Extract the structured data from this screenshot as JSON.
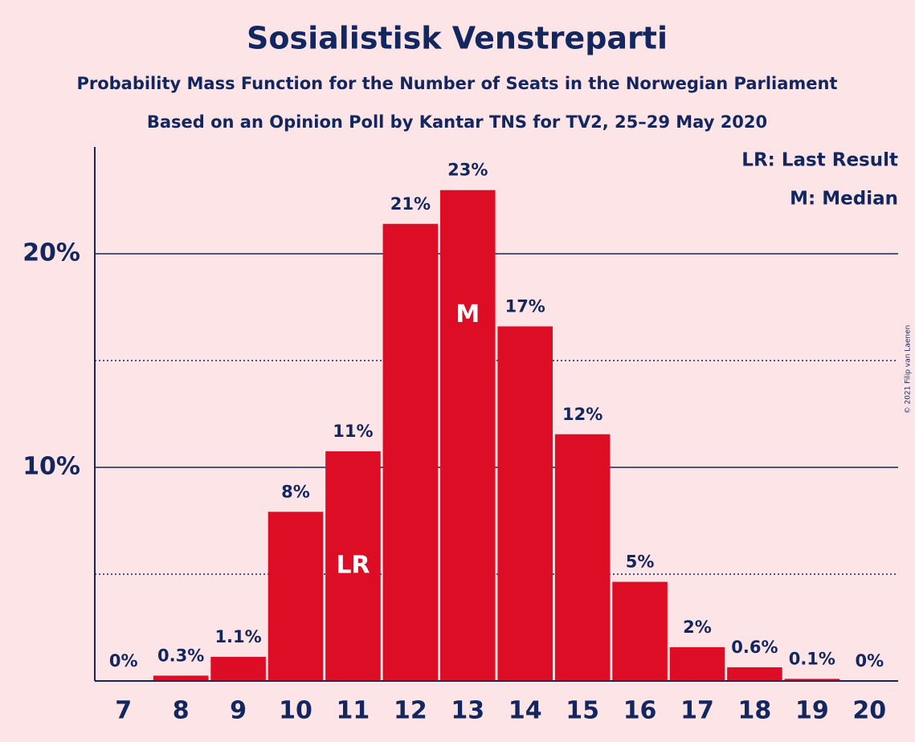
{
  "chart_data": {
    "type": "bar",
    "title": "Sosialistisk Venstreparti",
    "subtitles": [
      "Probability Mass Function for the Number of Seats in the Norwegian Parliament",
      "Based on an Opinion Poll by Kantar TNS for TV2, 25–29 May 2020"
    ],
    "categories": [
      "7",
      "8",
      "9",
      "10",
      "11",
      "12",
      "13",
      "14",
      "15",
      "16",
      "17",
      "18",
      "19",
      "20"
    ],
    "values": [
      0,
      0.25,
      1.13,
      7.92,
      10.75,
      21.4,
      22.98,
      16.6,
      11.55,
      4.64,
      1.58,
      0.64,
      0.1,
      0
    ],
    "value_labels": [
      "0%",
      "0.3%",
      "1.1%",
      "8%",
      "11%",
      "21%",
      "23%",
      "17%",
      "12%",
      "5%",
      "2%",
      "0.6%",
      "0.1%",
      "0%"
    ],
    "color": "#dc0d24",
    "ylim": [
      0,
      25
    ],
    "yticks": [
      {
        "value": 10,
        "label": "10%"
      },
      {
        "value": 20,
        "label": "20%"
      }
    ],
    "minor_gridlines": [
      5,
      15
    ],
    "grid": true,
    "bar_annotations": [
      {
        "category": "11",
        "text": "LR"
      },
      {
        "category": "13",
        "text": "M"
      }
    ],
    "legend": [
      "LR: Last Result",
      "M: Median"
    ],
    "legend_position": "top-right",
    "credit": "© 2021 Filip van Laenen"
  }
}
